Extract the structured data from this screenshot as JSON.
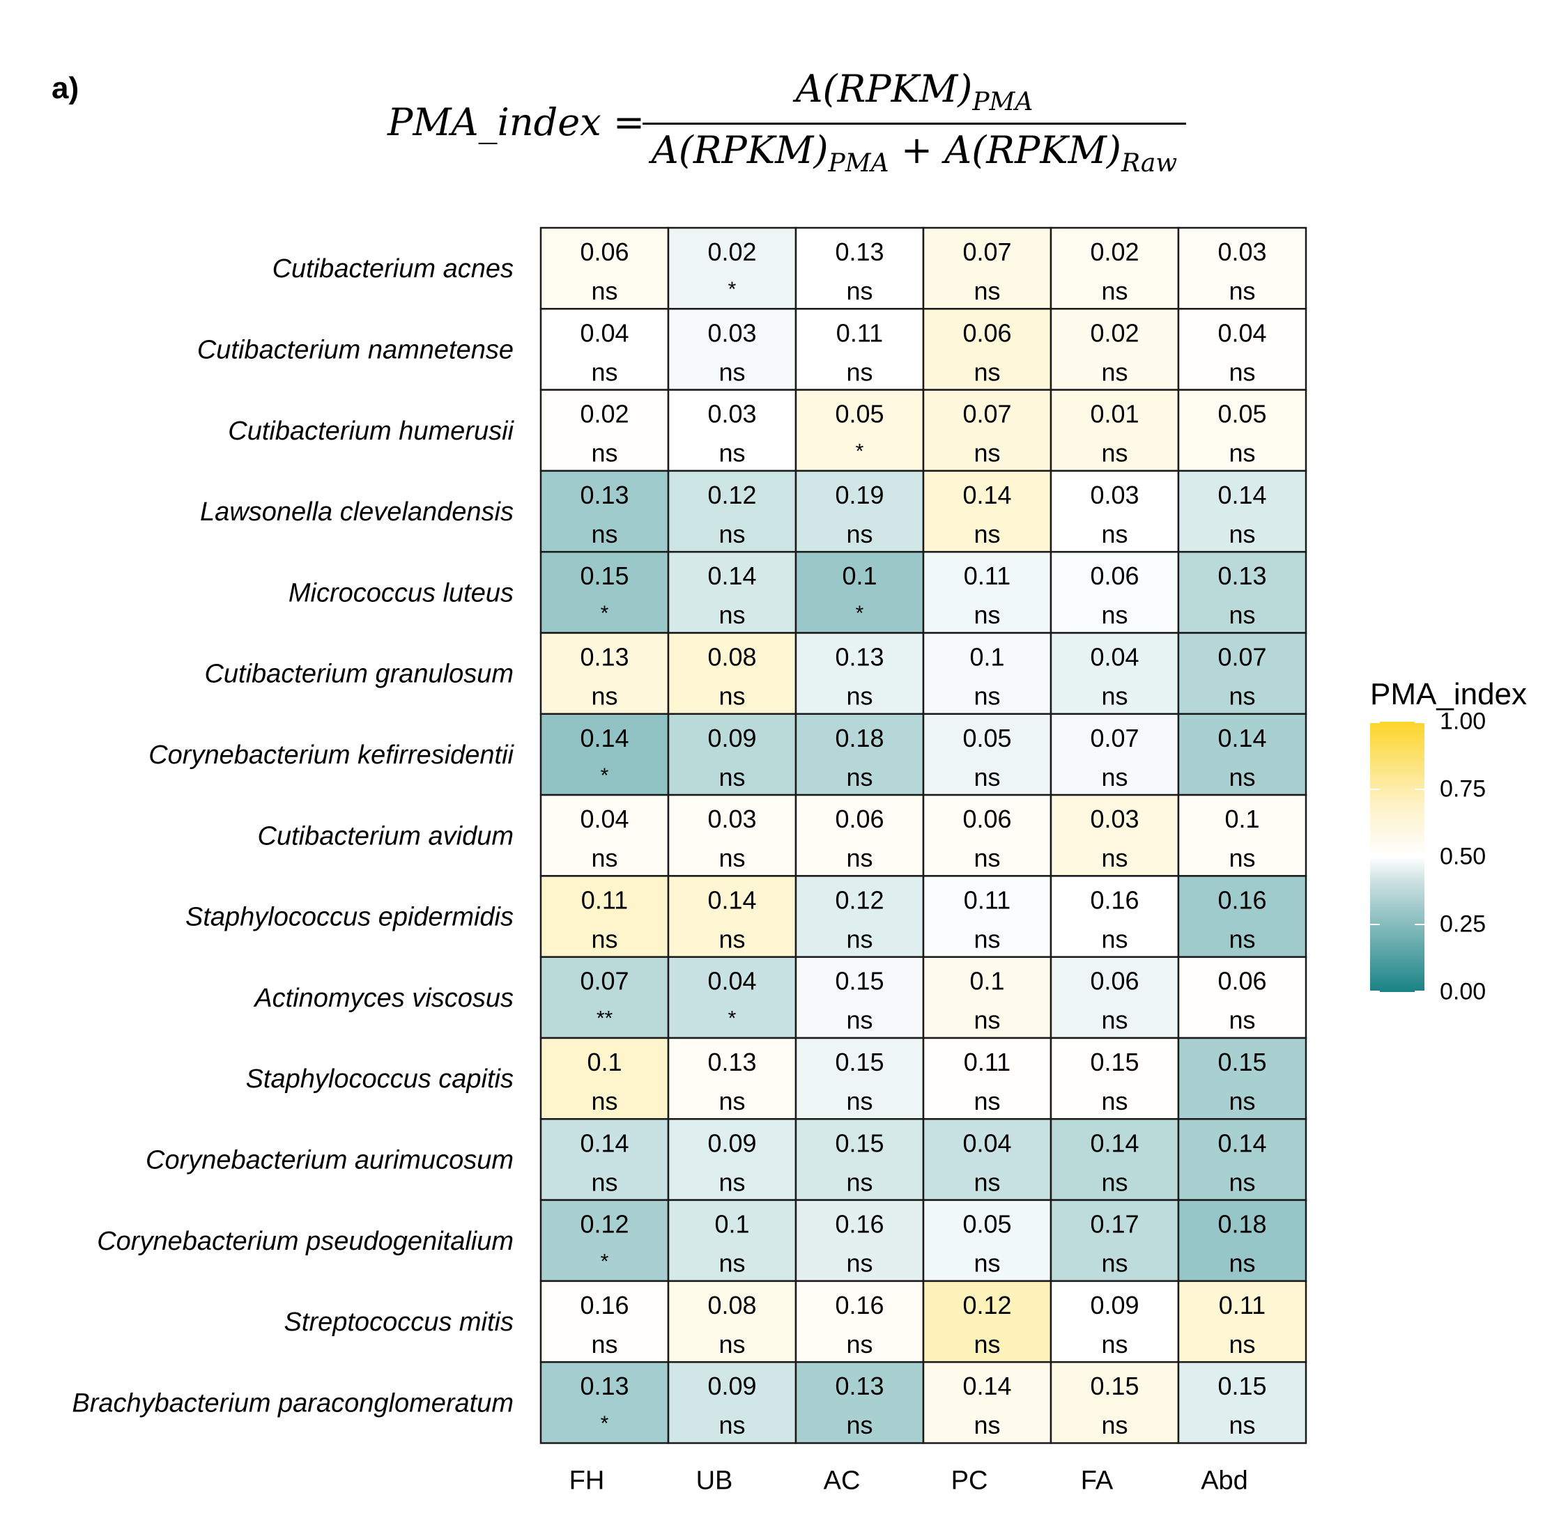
{
  "panel_label": "a)",
  "formula": {
    "lhs": "PMA_index =",
    "numerator_main": "A(RPKM)",
    "numerator_sub": "PMA",
    "denominator_a_main": "A(RPKM)",
    "denominator_a_sub": "PMA",
    "denominator_plus": "+",
    "denominator_b_main": "A(RPKM)",
    "denominator_b_sub": "Raw"
  },
  "legend": {
    "title": "PMA_index",
    "ticks": [
      "1.00",
      "0.75",
      "0.50",
      "0.25",
      "0.00"
    ],
    "colors": {
      "low": "#1a8285",
      "mid": "#ffffff",
      "high": "#fdd52a"
    }
  },
  "chart_data": {
    "type": "heatmap",
    "title": "",
    "x_categories": [
      "FH",
      "UB",
      "AC",
      "PC",
      "FA",
      "Abd"
    ],
    "y_categories": [
      "Cutibacterium acnes",
      "Cutibacterium namnetense",
      "Cutibacterium humerusii",
      "Lawsonella clevelandensis",
      "Micrococcus luteus",
      "Cutibacterium granulosum",
      "Corynebacterium kefirresidentii",
      "Cutibacterium avidum",
      "Staphylococcus epidermidis",
      "Actinomyces viscosus",
      "Staphylococcus capitis",
      "Corynebacterium aurimucosum",
      "Corynebacterium pseudogenitalium",
      "Streptococcus mitis",
      "Brachybacterium paraconglomeratum"
    ],
    "value_labels": [
      [
        "0.06",
        "0.02",
        "0.13",
        "0.07",
        "0.02",
        "0.03"
      ],
      [
        "0.04",
        "0.03",
        "0.11",
        "0.06",
        "0.02",
        "0.04"
      ],
      [
        "0.02",
        "0.03",
        "0.05",
        "0.07",
        "0.01",
        "0.05"
      ],
      [
        "0.13",
        "0.12",
        "0.19",
        "0.14",
        "0.03",
        "0.14"
      ],
      [
        "0.15",
        "0.14",
        "0.1",
        "0.11",
        "0.06",
        "0.13"
      ],
      [
        "0.13",
        "0.08",
        "0.13",
        "0.1",
        "0.04",
        "0.07"
      ],
      [
        "0.14",
        "0.09",
        "0.18",
        "0.05",
        "0.07",
        "0.14"
      ],
      [
        "0.04",
        "0.03",
        "0.06",
        "0.06",
        "0.03",
        "0.1"
      ],
      [
        "0.11",
        "0.14",
        "0.12",
        "0.11",
        "0.16",
        "0.16"
      ],
      [
        "0.07",
        "0.04",
        "0.15",
        "0.1",
        "0.06",
        "0.06"
      ],
      [
        "0.1",
        "0.13",
        "0.15",
        "0.11",
        "0.15",
        "0.15"
      ],
      [
        "0.14",
        "0.09",
        "0.15",
        "0.04",
        "0.14",
        "0.14"
      ],
      [
        "0.12",
        "0.1",
        "0.16",
        "0.05",
        "0.17",
        "0.18"
      ],
      [
        "0.16",
        "0.08",
        "0.16",
        "0.12",
        "0.09",
        "0.11"
      ],
      [
        "0.13",
        "0.09",
        "0.13",
        "0.14",
        "0.15",
        "0.15"
      ]
    ],
    "significance": [
      [
        "ns",
        "*",
        "ns",
        "ns",
        "ns",
        "ns"
      ],
      [
        "ns",
        "ns",
        "ns",
        "ns",
        "ns",
        "ns"
      ],
      [
        "ns",
        "ns",
        "*",
        "ns",
        "ns",
        "ns"
      ],
      [
        "ns",
        "ns",
        "ns",
        "ns",
        "ns",
        "ns"
      ],
      [
        "*",
        "ns",
        "*",
        "ns",
        "ns",
        "ns"
      ],
      [
        "ns",
        "ns",
        "ns",
        "ns",
        "ns",
        "ns"
      ],
      [
        "*",
        "ns",
        "ns",
        "ns",
        "ns",
        "ns"
      ],
      [
        "ns",
        "ns",
        "ns",
        "ns",
        "ns",
        "ns"
      ],
      [
        "ns",
        "ns",
        "ns",
        "ns",
        "ns",
        "ns"
      ],
      [
        "**",
        "*",
        "ns",
        "ns",
        "ns",
        "ns"
      ],
      [
        "ns",
        "ns",
        "ns",
        "ns",
        "ns",
        "ns"
      ],
      [
        "ns",
        "ns",
        "ns",
        "ns",
        "ns",
        "ns"
      ],
      [
        "*",
        "ns",
        "ns",
        "ns",
        "ns",
        "ns"
      ],
      [
        "ns",
        "ns",
        "ns",
        "ns",
        "ns",
        "ns"
      ],
      [
        "*",
        "ns",
        "ns",
        "ns",
        "ns",
        "ns"
      ]
    ],
    "fill_values": [
      [
        0.53,
        0.46,
        0.5,
        0.56,
        0.53,
        0.52
      ],
      [
        0.5,
        0.48,
        0.5,
        0.59,
        0.54,
        0.51
      ],
      [
        0.51,
        0.5,
        0.57,
        0.58,
        0.56,
        0.53
      ],
      [
        0.29,
        0.39,
        0.4,
        0.6,
        0.5,
        0.42
      ],
      [
        0.28,
        0.41,
        0.28,
        0.47,
        0.49,
        0.35
      ],
      [
        0.58,
        0.6,
        0.45,
        0.48,
        0.45,
        0.34
      ],
      [
        0.26,
        0.35,
        0.34,
        0.46,
        0.48,
        0.31
      ],
      [
        0.52,
        0.52,
        0.52,
        0.52,
        0.57,
        0.52
      ],
      [
        0.62,
        0.6,
        0.43,
        0.49,
        0.5,
        0.29
      ],
      [
        0.35,
        0.38,
        0.48,
        0.54,
        0.46,
        0.51
      ],
      [
        0.62,
        0.52,
        0.46,
        0.51,
        0.51,
        0.31
      ],
      [
        0.38,
        0.43,
        0.41,
        0.38,
        0.35,
        0.31
      ],
      [
        0.31,
        0.41,
        0.44,
        0.47,
        0.36,
        0.27
      ],
      [
        0.51,
        0.55,
        0.52,
        0.66,
        0.5,
        0.6
      ],
      [
        0.3,
        0.4,
        0.31,
        0.54,
        0.56,
        0.43
      ]
    ],
    "color_scale": {
      "min": 0,
      "max": 1,
      "midpoint": 0.5
    },
    "legend_title": "PMA_index",
    "legend_position": "right"
  }
}
